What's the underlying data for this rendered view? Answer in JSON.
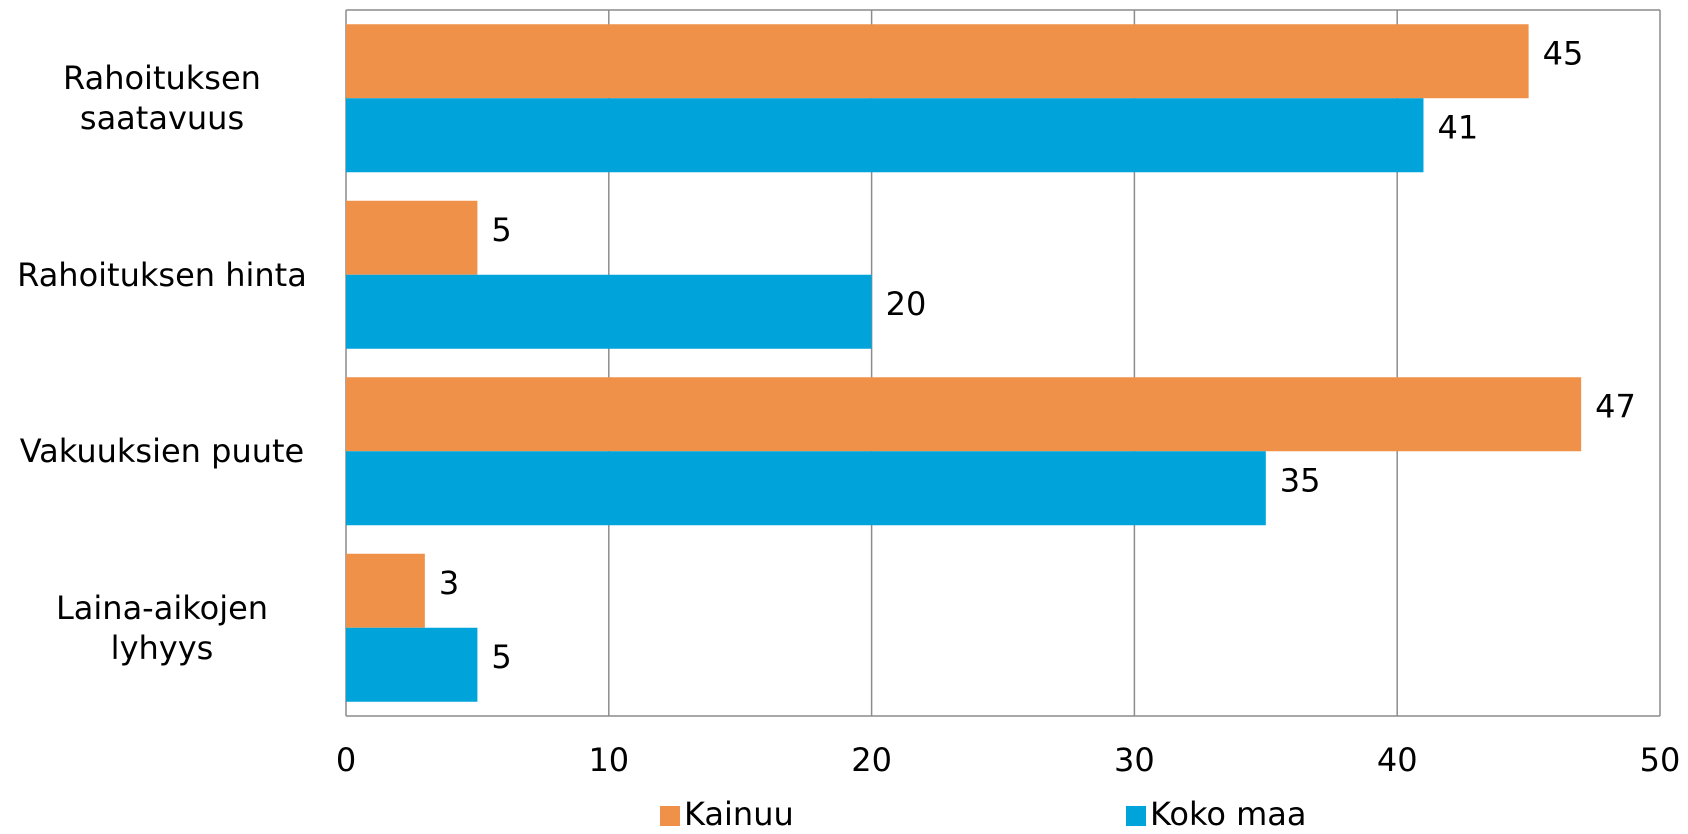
{
  "chart_data": {
    "type": "bar",
    "orientation": "horizontal",
    "categories": [
      "Rahoituksen saatavuus",
      "Rahoituksen hinta",
      "Vakuuksien puute",
      "Laina-aikojen lyhyys"
    ],
    "series": [
      {
        "name": "Kainuu",
        "color": "#f0914a",
        "values": [
          45,
          5,
          47,
          3
        ]
      },
      {
        "name": "Koko maa",
        "color": "#00a3da",
        "values": [
          41,
          20,
          35,
          5
        ]
      }
    ],
    "xlim": [
      0,
      50
    ],
    "xticks": [
      0,
      10,
      20,
      30,
      40,
      50
    ],
    "grid": true,
    "legend": "bottom"
  }
}
